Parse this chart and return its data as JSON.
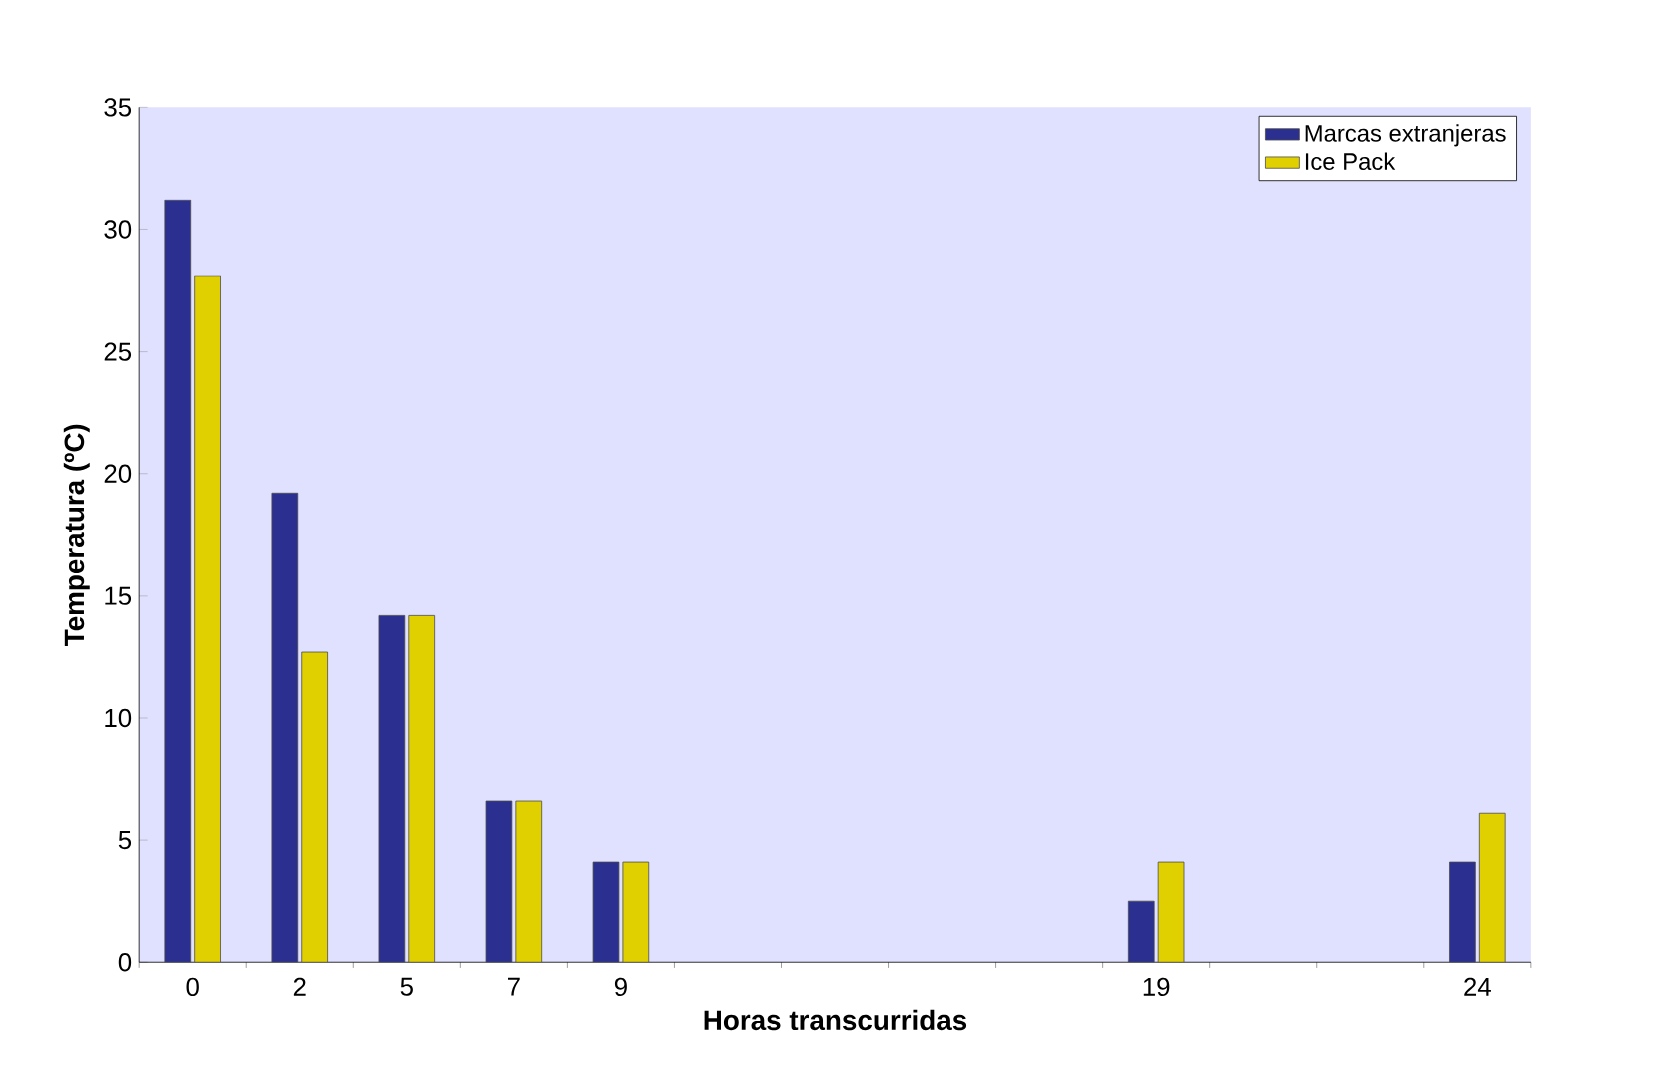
{
  "chart_data": {
    "type": "bar",
    "xlabel": "Horas transcurridas",
    "ylabel": "Temperatura (ºC)",
    "categories": [
      "0",
      "2",
      "5",
      "7",
      "9",
      null,
      null,
      null,
      null,
      "19",
      null,
      null,
      "24"
    ],
    "series": [
      {
        "name": "Marcas extranjeras",
        "color": "#2b2f8f",
        "values": [
          31.2,
          19.2,
          14.2,
          6.6,
          4.1,
          null,
          null,
          null,
          null,
          2.5,
          null,
          null,
          4.1
        ]
      },
      {
        "name": "Ice Pack",
        "color": "#e0d000",
        "values": [
          28.1,
          12.7,
          14.2,
          6.6,
          4.1,
          null,
          null,
          null,
          null,
          4.1,
          null,
          null,
          6.1
        ]
      }
    ],
    "ylim": [
      0,
      35
    ],
    "yticks": [
      0,
      5,
      10,
      15,
      20,
      25,
      30,
      35
    ],
    "grid": false,
    "legend": "top right"
  }
}
